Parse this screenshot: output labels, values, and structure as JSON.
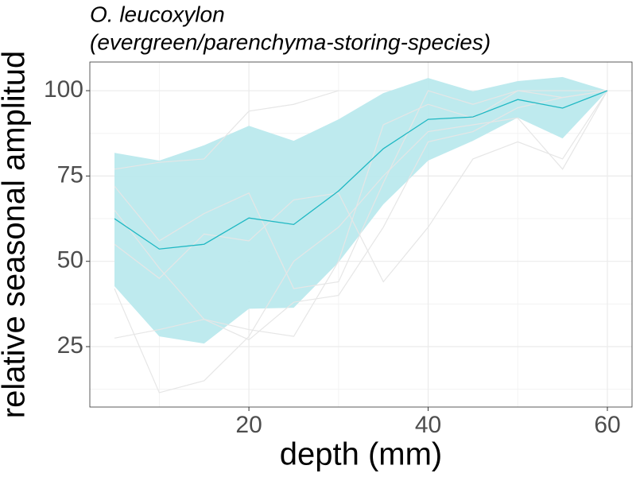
{
  "chart_data": {
    "type": "line",
    "title": "O. leucoxylon",
    "subtitle": "(evergreen/parenchyma-storing-species)",
    "x_label": "depth (mm)",
    "y_label": "relative seasonal amplitud",
    "x": [
      5,
      10,
      15,
      20,
      25,
      30,
      35,
      40,
      45,
      50,
      55,
      60
    ],
    "series": [
      {
        "color": "#1fb8c3",
        "values": [
          62.5,
          53.6,
          55,
          62.7,
          60.8,
          70.6,
          83,
          91.6,
          92.3,
          97.4,
          94.9,
          100
        ]
      }
    ],
    "band": {
      "color": "#bbe9ed",
      "upper": [
        81.8,
        79.5,
        84,
        89.7,
        85.3,
        91.6,
        99.3,
        103.7,
        99.8,
        102.8,
        104,
        100
      ],
      "lower": [
        42.7,
        28,
        25.9,
        36.1,
        36.4,
        49.7,
        66.7,
        79.5,
        85.3,
        92.1,
        86,
        100
      ]
    },
    "individuals": {
      "color": "#e6e6e6",
      "lines": [
        [
          27.5,
          30,
          33,
          27,
          38,
          40,
          60,
          85,
          88,
          95,
          98,
          100
        ],
        [
          42,
          11.5,
          15,
          28,
          50,
          60,
          75,
          88,
          90,
          92,
          77,
          100
        ],
        [
          72,
          56,
          64,
          70,
          42,
          44,
          73,
          100,
          96,
          100,
          100,
          100
        ],
        [
          77,
          79,
          80,
          94,
          96,
          100,
          null,
          null,
          null,
          null,
          null,
          null
        ],
        [
          65,
          48,
          33,
          30,
          28,
          50,
          90,
          96,
          92,
          100,
          98,
          100
        ],
        [
          55,
          45,
          58,
          56,
          68,
          70,
          44,
          60,
          80,
          85,
          80,
          100
        ]
      ]
    },
    "xlim": [
      2.25,
      62.75
    ],
    "ylim": [
      7.3,
      108.4
    ],
    "xticks": [
      20,
      40,
      60
    ],
    "yticks": [
      25,
      50,
      75,
      100
    ],
    "xminor": [
      10,
      30,
      50
    ],
    "yminor": [
      12.5,
      37.5,
      62.5,
      87.5
    ],
    "grid": true
  }
}
